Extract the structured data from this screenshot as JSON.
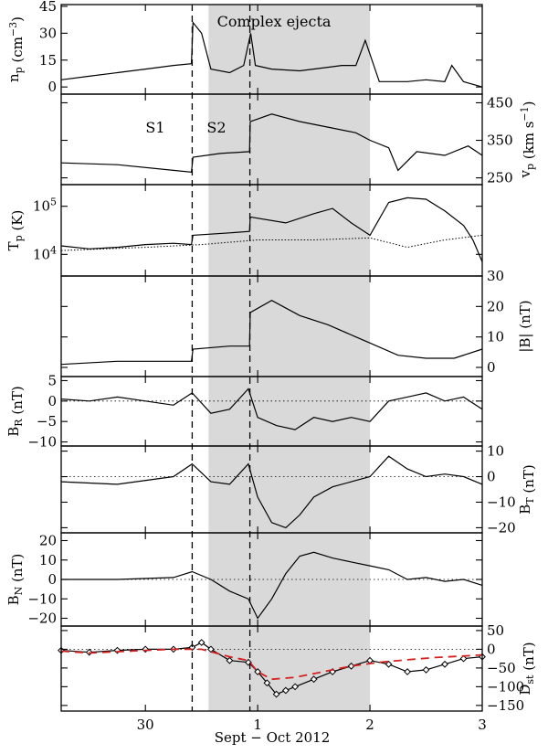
{
  "chart_data": {
    "type": "line",
    "title": "",
    "xlabel": "Sept − Oct 2012",
    "x_tick_labels": [
      "30",
      "1",
      "2",
      "3"
    ],
    "x_range": [
      "2012-09-29 06:00",
      "2012-10-03 00:00"
    ],
    "shaded_region": {
      "label": "Complex ejecta",
      "from": "2012-09-30 13:30",
      "to": "2012-10-02 00:00"
    },
    "markers": [
      {
        "label": "S1",
        "time": "2012-09-30 10:00"
      },
      {
        "label": "S2",
        "time": "2012-09-30 22:20"
      }
    ],
    "panels": [
      {
        "key": "np",
        "ylabel": "n_p (cm^-3)",
        "ylim": [
          -4,
          46
        ],
        "yticks": [
          0,
          15,
          30,
          45
        ],
        "ytick_labels": [
          "0",
          "15",
          "30",
          "45"
        ],
        "ylabel_side": "left",
        "zero_line": false,
        "series": [
          {
            "style": "solid",
            "x": [
              "09-29 06:00",
              "09-29 12:00",
              "09-29 18:00",
              "09-30 00:00",
              "09-30 06:00",
              "09-30 09:50",
              "09-30 10:10",
              "09-30 12:00",
              "09-30 14:00",
              "09-30 18:00",
              "09-30 21:00",
              "09-30 22:30",
              "09-30 23:30",
              "10-01 03:00",
              "10-01 09:00",
              "10-01 15:00",
              "10-01 18:00",
              "10-01 21:00",
              "10-01 23:00",
              "10-02 02:00",
              "10-02 08:00",
              "10-02 12:00",
              "10-02 16:00",
              "10-02 17:30",
              "10-02 20:00",
              "10-03 00:00"
            ],
            "y": [
              4,
              6,
              8,
              10,
              12,
              13,
              36,
              30,
              10,
              8,
              12,
              30,
              12,
              10,
              9,
              11,
              12,
              12,
              26,
              3,
              3,
              4,
              3,
              12,
              3,
              0
            ]
          }
        ]
      },
      {
        "key": "vp",
        "ylabel": "v_p (km s^-1)",
        "ylim": [
          232,
          473
        ],
        "yticks": [
          250,
          350,
          450
        ],
        "ytick_labels": [
          "250",
          "350",
          "450"
        ],
        "ylabel_side": "right",
        "zero_line": false,
        "series": [
          {
            "style": "solid",
            "x": [
              "09-29 06:00",
              "09-29 18:00",
              "09-30 06:00",
              "09-30 09:50",
              "09-30 10:10",
              "09-30 16:00",
              "09-30 22:15",
              "09-30 22:25",
              "10-01 03:00",
              "10-01 09:00",
              "10-01 15:00",
              "10-01 21:00",
              "10-02 00:00",
              "10-02 04:00",
              "10-02 06:00",
              "10-02 10:00",
              "10-02 16:00",
              "10-02 21:00",
              "10-03 00:00"
            ],
            "y": [
              290,
              285,
              270,
              265,
              305,
              315,
              320,
              400,
              420,
              400,
              385,
              370,
              350,
              330,
              270,
              320,
              310,
              335,
              310
            ]
          }
        ]
      },
      {
        "key": "Tp",
        "ylabel": "T_p (K)",
        "ylim_log10": [
          3.55,
          5.45
        ],
        "yticks": [
          10000,
          100000
        ],
        "ytick_labels": [
          "10^4",
          "10^5"
        ],
        "ylabel_side": "left",
        "zero_line": false,
        "series": [
          {
            "name": "",
            "style": "solid",
            "x": [
              "09-29 06:00",
              "09-29 12:00",
              "09-29 18:00",
              "09-30 00:00",
              "09-30 06:00",
              "09-30 09:50",
              "09-30 10:10",
              "09-30 18:00",
              "09-30 22:15",
              "09-30 22:25",
              "10-01 06:00",
              "10-01 12:00",
              "10-01 16:00",
              "10-01 20:00",
              "10-02 00:00",
              "10-02 04:00",
              "10-02 08:00",
              "10-02 12:00",
              "10-02 16:00",
              "10-02 20:00",
              "10-02 22:00",
              "10-03 00:00"
            ],
            "y": [
              15000,
              13000,
              14000,
              16000,
              17000,
              16000,
              25000,
              28000,
              30000,
              60000,
              45000,
              70000,
              90000,
              45000,
              25000,
              120000,
              150000,
              140000,
              80000,
              40000,
              20000,
              7000
            ]
          },
          {
            "name": "",
            "style": "dotted",
            "x": [
              "09-29 06:00",
              "09-30 00:00",
              "09-30 12:00",
              "10-01 00:00",
              "10-01 12:00",
              "10-02 00:00",
              "10-02 08:00",
              "10-02 16:00",
              "10-03 00:00"
            ],
            "y": [
              12000,
              14000,
              16000,
              20000,
              20000,
              22000,
              14000,
              20000,
              25000
            ]
          }
        ]
      },
      {
        "key": "B",
        "ylabel": "|B| (nT)",
        "ylim": [
          -3,
          30
        ],
        "yticks": [
          0,
          10,
          20,
          30
        ],
        "ytick_labels": [
          "0",
          "10",
          "20",
          "30"
        ],
        "ylabel_side": "right",
        "zero_line": false,
        "series": [
          {
            "style": "solid",
            "x": [
              "09-29 06:00",
              "09-29 18:00",
              "09-30 06:00",
              "09-30 09:50",
              "09-30 10:10",
              "09-30 18:00",
              "09-30 22:15",
              "09-30 22:25",
              "10-01 03:00",
              "10-01 09:00",
              "10-01 15:00",
              "10-01 21:00",
              "10-02 00:00",
              "10-02 06:00",
              "10-02 12:00",
              "10-02 18:00",
              "10-03 00:00"
            ],
            "y": [
              1,
              2,
              2,
              2,
              6,
              7,
              7,
              18,
              22,
              17,
              14,
              10,
              8,
              4,
              3,
              3,
              6
            ]
          }
        ]
      },
      {
        "key": "BR",
        "ylabel": "B_R (nT)",
        "ylim": [
          -11,
          6
        ],
        "yticks": [
          -10,
          -5,
          0,
          5
        ],
        "ytick_labels": [
          "−10",
          "−5",
          "0",
          "5"
        ],
        "ylabel_side": "left",
        "zero_line": true,
        "series": [
          {
            "style": "solid",
            "x": [
              "09-29 06:00",
              "09-29 12:00",
              "09-29 18:00",
              "09-30 00:00",
              "09-30 06:00",
              "09-30 10:00",
              "09-30 14:00",
              "09-30 18:00",
              "09-30 22:00",
              "10-01 00:00",
              "10-01 04:00",
              "10-01 08:00",
              "10-01 12:00",
              "10-01 16:00",
              "10-01 20:00",
              "10-02 00:00",
              "10-02 04:00",
              "10-02 08:00",
              "10-02 12:00",
              "10-02 16:00",
              "10-02 20:00",
              "10-03 00:00"
            ],
            "y": [
              0.5,
              0,
              1,
              0,
              -1,
              2,
              -3,
              -2,
              3,
              -4,
              -6,
              -7,
              -4,
              -5,
              -4,
              -5,
              0,
              1,
              2,
              0,
              1,
              -2
            ]
          }
        ]
      },
      {
        "key": "BT",
        "ylabel": "B_T (nT)",
        "ylim": [
          -22,
          12
        ],
        "yticks": [
          -20,
          -10,
          0,
          10
        ],
        "ytick_labels": [
          "−20",
          "−10",
          "0",
          "10"
        ],
        "ylabel_side": "right",
        "zero_line": true,
        "series": [
          {
            "style": "solid",
            "x": [
              "09-29 06:00",
              "09-29 18:00",
              "09-30 06:00",
              "09-30 10:00",
              "09-30 14:00",
              "09-30 18:00",
              "09-30 22:00",
              "10-01 00:00",
              "10-01 03:00",
              "10-01 06:00",
              "10-01 09:00",
              "10-01 12:00",
              "10-01 16:00",
              "10-01 20:00",
              "10-02 00:00",
              "10-02 04:00",
              "10-02 08:00",
              "10-02 12:00",
              "10-02 16:00",
              "10-02 20:00",
              "10-03 00:00"
            ],
            "y": [
              -2,
              -3,
              0,
              5,
              -2,
              -3,
              5,
              -8,
              -18,
              -20,
              -15,
              -8,
              -4,
              -2,
              0,
              8,
              3,
              0,
              1,
              0,
              -3
            ]
          }
        ]
      },
      {
        "key": "BN",
        "ylabel": "B_N (nT)",
        "ylim": [
          -24,
          24
        ],
        "yticks": [
          -20,
          -10,
          0,
          10,
          20
        ],
        "ytick_labels": [
          "−20",
          "−10",
          "0",
          "10",
          "20"
        ],
        "ylabel_side": "left",
        "zero_line": true,
        "series": [
          {
            "style": "solid",
            "x": [
              "09-29 06:00",
              "09-29 18:00",
              "09-30 06:00",
              "09-30 10:00",
              "09-30 14:00",
              "09-30 18:00",
              "09-30 22:00",
              "10-01 00:00",
              "10-01 03:00",
              "10-01 06:00",
              "10-01 09:00",
              "10-01 12:00",
              "10-01 16:00",
              "10-01 20:00",
              "10-02 00:00",
              "10-02 04:00",
              "10-02 08:00",
              "10-02 12:00",
              "10-02 16:00",
              "10-02 20:00",
              "10-03 00:00"
            ],
            "y": [
              0,
              0,
              1,
              4,
              0,
              -6,
              -10,
              -20,
              -10,
              3,
              12,
              14,
              11,
              9,
              7,
              5,
              0,
              1,
              -1,
              0,
              -3
            ]
          }
        ]
      },
      {
        "key": "Dst",
        "ylabel": "D_st (nT)",
        "ylim": [
          -165,
          62
        ],
        "yticks": [
          -150,
          -100,
          -50,
          0,
          50
        ],
        "ytick_labels": [
          "−150",
          "−100",
          "−50",
          "0",
          "50"
        ],
        "ylabel_side": "right",
        "zero_line": true,
        "series": [
          {
            "name": "",
            "style": "solid-diamonds",
            "color": "#000000",
            "x": [
              "09-29 06:00",
              "09-29 12:00",
              "09-29 18:00",
              "09-30 00:00",
              "09-30 06:00",
              "09-30 10:00",
              "09-30 12:00",
              "09-30 14:00",
              "09-30 18:00",
              "09-30 22:00",
              "10-01 00:00",
              "10-01 02:00",
              "10-01 04:00",
              "10-01 06:00",
              "10-01 08:00",
              "10-01 12:00",
              "10-01 16:00",
              "10-01 20:00",
              "10-02 00:00",
              "10-02 04:00",
              "10-02 08:00",
              "10-02 12:00",
              "10-02 16:00",
              "10-02 20:00",
              "10-03 00:00"
            ],
            "y": [
              -3,
              -8,
              -3,
              0,
              0,
              5,
              18,
              0,
              -30,
              -35,
              -60,
              -90,
              -120,
              -110,
              -100,
              -80,
              -60,
              -45,
              -30,
              -40,
              -60,
              -55,
              -40,
              -25,
              -20
            ]
          },
          {
            "name": "",
            "style": "dashed",
            "color": "#d62020",
            "x": [
              "09-29 06:00",
              "09-29 12:00",
              "09-30 00:00",
              "09-30 06:00",
              "09-30 12:00",
              "09-30 18:00",
              "09-30 22:00",
              "10-01 00:00",
              "10-01 03:00",
              "10-01 08:00",
              "10-01 14:00",
              "10-01 20:00",
              "10-02 02:00",
              "10-02 08:00",
              "10-02 14:00",
              "10-02 20:00",
              "10-03 00:00"
            ],
            "y": [
              -5,
              -10,
              -3,
              0,
              0,
              -20,
              -30,
              -60,
              -80,
              -75,
              -60,
              -45,
              -35,
              -28,
              -22,
              -18,
              -15
            ]
          }
        ]
      }
    ]
  }
}
